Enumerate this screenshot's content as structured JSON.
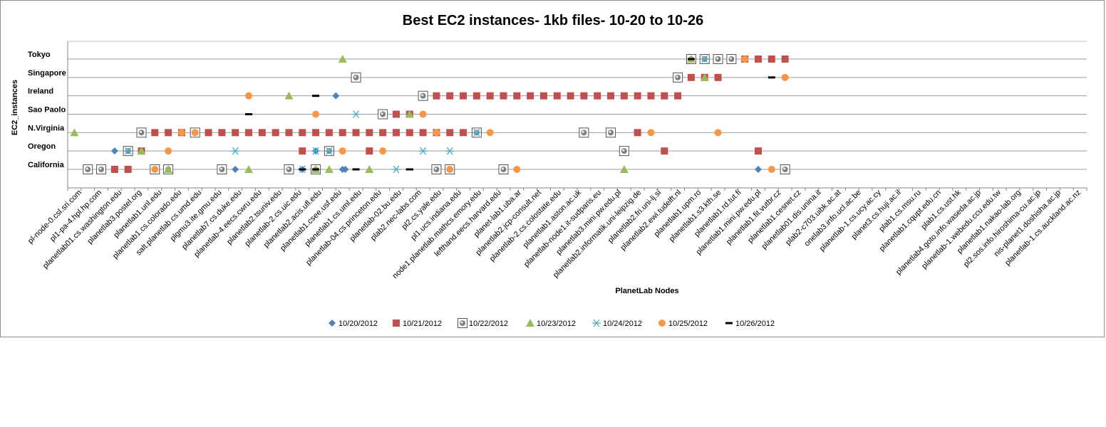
{
  "chart_data": {
    "type": "scatter",
    "title": "Best EC2 instances- 1kb files- 10-20 to 10-26",
    "xlabel": "PlanetLab Nodes",
    "ylabel": "EC2_instances",
    "y_categories": [
      "California",
      "Oregon",
      "N.Virginia",
      "Sao Paolo",
      "Ireland",
      "Singapore",
      "Tokyo"
    ],
    "x_category_count": 76,
    "x_tick_labels": [
      "pl-node-0.csl.sri.com",
      "pl1-pa-4.hpl.hp.com",
      "planetlab01.cs.washington.edu",
      "planetlab3.postel.org",
      "planetlab1.unl.edu",
      "planetlab1.cs.colorado.edu",
      "salt.planetlab.cs.umd.edu",
      "plgmu3.ite.gmu.edu",
      "planetlab7.cs.duke.edu",
      "planetlab-4.eecs.cwru.edu",
      "planetlab2.tsuniv.edu",
      "planetlab-2.cs.uic.edu",
      "planetlab2.acis.ufl.edu",
      "planetlab1.csee.usf.edu",
      "planetlab1.cs.uml.edu",
      "planetlab-04.cs.princeton.edu",
      "planetlab-02.bu.edu",
      "plab2.nec-labs.com",
      "pl2.cs.yale.edu",
      "pl1.ucs.indiana.edu",
      "node1.planetlab.mathcs.emory.edu",
      "lefthand.eecs.harvard.edu",
      "planet-lab1.uba.ar",
      "planetlab2.jcp-consult.net",
      "planetlab-2.cs.colostate.edu",
      "planetlab1.aston.ac.uk",
      "planetlab-node1.it-sudparis.eu",
      "planetlab3.mini.pw.edu.pl",
      "planetlab2.informatik.uni-leipzig.de",
      "planetlab2.fri.uni-lj.si",
      "planetlab2.ewi.tudelft.nl",
      "planetlab1.upm.ro",
      "planetlab1.s3.kth.se",
      "planetlab1.rd.tut.fi",
      "planetlab1.mini.pw.edu.pl",
      "planetlab1.fit.vutbr.cz",
      "planetlab1.cesnet.cz",
      "planetlab01.dis.unina.it",
      "plab2-c703.uibk.ac.at",
      "onelab3.info.ucl.ac.be",
      "planetlab-1.cs.ucy.ac.cy",
      "planet3.cs.huji.ac.il",
      "plab1.cs.msu.ru",
      "planetlab1.cqupt.edu.cn",
      "plab1.cs.ust.hk",
      "planetlab4.goto.info.waseda.ac.jp",
      "planetlab-1.webedu.ccu.edu.tw",
      "planetlab1.nakao-lab.org",
      "pl2.sos.info.hiroshima-cu.ac.jp",
      "nis-planet1.doshisha.ac.jp",
      "planetlab-1.cs.auckland.ac.nz"
    ],
    "legend_position": "bottom",
    "gridlines": "horizontal",
    "series": [
      {
        "name": "10/20/2012",
        "color": "#4f81bd",
        "marker": "diamond",
        "points": [
          [
            3,
            "Oregon"
          ],
          [
            12,
            "California"
          ],
          [
            20,
            "California"
          ],
          [
            17,
            "California"
          ],
          [
            18,
            "Oregon"
          ],
          [
            20,
            "Oregon"
          ],
          [
            20.2,
            "California"
          ],
          [
            19.5,
            "Ireland"
          ],
          [
            30,
            "N.Virginia"
          ],
          [
            49,
            "Tokyo"
          ],
          [
            51,
            "California"
          ]
        ]
      },
      {
        "name": "10/21/2012",
        "color": "#c0504d",
        "marker": "square",
        "points": [
          [
            1,
            "California"
          ],
          [
            2,
            "California"
          ],
          [
            3,
            "California"
          ],
          [
            4,
            "California"
          ],
          [
            5,
            "N.Virginia"
          ],
          [
            6,
            "N.Virginia"
          ],
          [
            7,
            "N.Virginia"
          ],
          [
            4,
            "Oregon"
          ],
          [
            5,
            "Oregon"
          ],
          [
            8,
            "N.Virginia"
          ],
          [
            9,
            "N.Virginia"
          ],
          [
            10,
            "N.Virginia"
          ],
          [
            11,
            "N.Virginia"
          ],
          [
            12,
            "N.Virginia"
          ],
          [
            13,
            "N.Virginia"
          ],
          [
            14,
            "N.Virginia"
          ],
          [
            15,
            "N.Virginia"
          ],
          [
            16,
            "N.Virginia"
          ],
          [
            17,
            "N.Virginia"
          ],
          [
            18,
            "N.Virginia"
          ],
          [
            19,
            "N.Virginia"
          ],
          [
            20,
            "N.Virginia"
          ],
          [
            21,
            "N.Virginia"
          ],
          [
            22,
            "N.Virginia"
          ],
          [
            23,
            "N.Virginia"
          ],
          [
            24,
            "N.Virginia"
          ],
          [
            25,
            "N.Virginia"
          ],
          [
            26,
            "N.Virginia"
          ],
          [
            27,
            "N.Virginia"
          ],
          [
            28,
            "N.Virginia"
          ],
          [
            29,
            "N.Virginia"
          ],
          [
            17,
            "Oregon"
          ],
          [
            22,
            "Oregon"
          ],
          [
            24,
            "Sao Paolo"
          ],
          [
            25,
            "Sao Paolo"
          ],
          [
            24,
            "N.Virginia"
          ],
          [
            26,
            "Ireland"
          ],
          [
            27,
            "Ireland"
          ],
          [
            28,
            "Ireland"
          ],
          [
            29,
            "Ireland"
          ],
          [
            30,
            "Ireland"
          ],
          [
            31,
            "Ireland"
          ],
          [
            32,
            "Ireland"
          ],
          [
            33,
            "Ireland"
          ],
          [
            34,
            "Ireland"
          ],
          [
            35,
            "Ireland"
          ],
          [
            36,
            "Ireland"
          ],
          [
            37,
            "Ireland"
          ],
          [
            38,
            "Ireland"
          ],
          [
            39,
            "Ireland"
          ],
          [
            40,
            "Ireland"
          ],
          [
            41,
            "Ireland"
          ],
          [
            42,
            "Ireland"
          ],
          [
            43,
            "Ireland"
          ],
          [
            44,
            "Ireland"
          ],
          [
            45,
            "Ireland"
          ],
          [
            42,
            "N.Virginia"
          ],
          [
            45,
            "Singapore"
          ],
          [
            46,
            "Singapore"
          ],
          [
            47,
            "Singapore"
          ],
          [
            44,
            "Oregon"
          ],
          [
            48,
            "Singapore"
          ],
          [
            49,
            "Tokyo"
          ],
          [
            50,
            "Tokyo"
          ],
          [
            51,
            "Tokyo"
          ],
          [
            52,
            "Tokyo"
          ],
          [
            53,
            "Tokyo"
          ],
          [
            51,
            "Oregon"
          ]
        ]
      },
      {
        "name": "10/22/2012",
        "color": "#8064a2",
        "marker": "boxed-circle",
        "points": [
          [
            1,
            "California"
          ],
          [
            2,
            "California"
          ],
          [
            5,
            "N.Virginia"
          ],
          [
            4,
            "Oregon"
          ],
          [
            6,
            "California"
          ],
          [
            7,
            "California"
          ],
          [
            9,
            "N.Virginia"
          ],
          [
            11,
            "California"
          ],
          [
            16,
            "California"
          ],
          [
            18,
            "California"
          ],
          [
            19,
            "Oregon"
          ],
          [
            21,
            "Singapore"
          ],
          [
            23,
            "Sao Paolo"
          ],
          [
            26,
            "Ireland"
          ],
          [
            27,
            "California"
          ],
          [
            28,
            "California"
          ],
          [
            30,
            "N.Virginia"
          ],
          [
            32,
            "California"
          ],
          [
            38,
            "N.Virginia"
          ],
          [
            40,
            "N.Virginia"
          ],
          [
            41,
            "Oregon"
          ],
          [
            45,
            "Singapore"
          ],
          [
            46,
            "Tokyo"
          ],
          [
            47,
            "Tokyo"
          ],
          [
            48,
            "Tokyo"
          ],
          [
            49,
            "Tokyo"
          ],
          [
            53,
            "California"
          ]
        ]
      },
      {
        "name": "10/23/2012",
        "color": "#9bbb59",
        "marker": "triangle",
        "points": [
          [
            0,
            "N.Virginia"
          ],
          [
            5,
            "Oregon"
          ],
          [
            7,
            "California"
          ],
          [
            13,
            "California"
          ],
          [
            16,
            "Ireland"
          ],
          [
            20,
            "Tokyo"
          ],
          [
            18,
            "California"
          ],
          [
            19,
            "California"
          ],
          [
            22,
            "California"
          ],
          [
            25,
            "Sao Paolo"
          ],
          [
            41,
            "California"
          ],
          [
            46,
            "Tokyo"
          ],
          [
            47,
            "Singapore"
          ]
        ]
      },
      {
        "name": "10/24/2012",
        "color": "#4bacc6",
        "marker": "asterisk",
        "points": [
          [
            4,
            "Oregon"
          ],
          [
            12,
            "Oregon"
          ],
          [
            17,
            "California"
          ],
          [
            18,
            "Oregon"
          ],
          [
            19,
            "Oregon"
          ],
          [
            21,
            "Sao Paolo"
          ],
          [
            24,
            "California"
          ],
          [
            26,
            "Oregon"
          ],
          [
            28,
            "Oregon"
          ],
          [
            30,
            "N.Virginia"
          ],
          [
            47,
            "Tokyo"
          ]
        ]
      },
      {
        "name": "10/25/2012",
        "color": "#f79646",
        "marker": "circle",
        "points": [
          [
            6,
            "California"
          ],
          [
            7,
            "Oregon"
          ],
          [
            8,
            "N.Virginia"
          ],
          [
            9,
            "N.Virginia"
          ],
          [
            13,
            "Ireland"
          ],
          [
            18,
            "Sao Paolo"
          ],
          [
            20,
            "Oregon"
          ],
          [
            23,
            "Oregon"
          ],
          [
            26,
            "Sao Paolo"
          ],
          [
            27,
            "N.Virginia"
          ],
          [
            28,
            "California"
          ],
          [
            31,
            "N.Virginia"
          ],
          [
            33,
            "California"
          ],
          [
            43,
            "N.Virginia"
          ],
          [
            48,
            "N.Virginia"
          ],
          [
            50,
            "Tokyo"
          ],
          [
            52,
            "California"
          ],
          [
            53,
            "Singapore"
          ]
        ]
      },
      {
        "name": "10/26/2012",
        "color": "#000000",
        "marker": "dash",
        "points": [
          [
            13,
            "Sao Paolo"
          ],
          [
            18,
            "Ireland"
          ],
          [
            17,
            "California"
          ],
          [
            18,
            "California"
          ],
          [
            21,
            "California"
          ],
          [
            25,
            "California"
          ],
          [
            25,
            "California"
          ],
          [
            46,
            "Tokyo"
          ],
          [
            52,
            "Singapore"
          ]
        ]
      }
    ]
  }
}
